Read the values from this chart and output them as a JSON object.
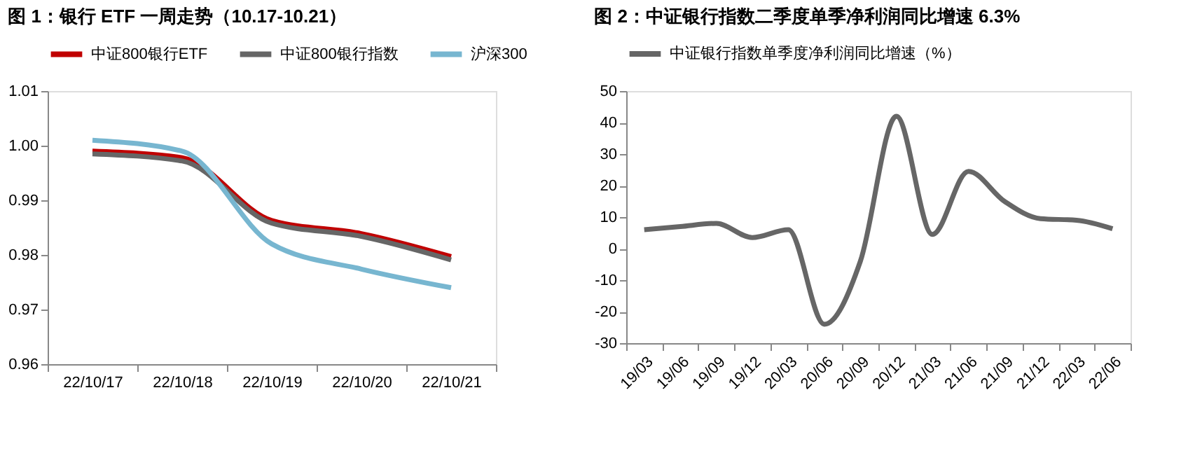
{
  "chart_data": [
    {
      "type": "line",
      "title": "图 1：银行 ETF 一周走势（10.17-10.21）",
      "categories": [
        "22/10/17",
        "22/10/18",
        "22/10/19",
        "22/10/20",
        "22/10/21"
      ],
      "series": [
        {
          "name": "中证800银行ETF",
          "color": "#c00000",
          "values": [
            0.999,
            0.9978,
            0.9863,
            0.9839,
            0.9797
          ]
        },
        {
          "name": "中证800银行指数",
          "color": "#666666",
          "values": [
            0.9985,
            0.9972,
            0.9858,
            0.9834,
            0.9791
          ]
        },
        {
          "name": "沪深300",
          "color": "#77b6d0",
          "values": [
            1.001,
            0.999,
            0.982,
            0.9774,
            0.974
          ]
        }
      ],
      "ylim": [
        0.96,
        1.01
      ],
      "yticks": [
        {
          "value": 0.96,
          "label": "0.96"
        },
        {
          "value": 0.97,
          "label": "0.97"
        },
        {
          "value": 0.98,
          "label": "0.98"
        },
        {
          "value": 0.99,
          "label": "0.99"
        },
        {
          "value": 1.0,
          "label": "1.00"
        },
        {
          "value": 1.01,
          "label": "1.01"
        }
      ],
      "grid": false,
      "legend": "top",
      "marker": "none",
      "line_style": "solid"
    },
    {
      "type": "line",
      "title": "图 2：中证银行指数二季度单季净利润同比增速 6.3%",
      "categories": [
        "19/03",
        "19/06",
        "19/09",
        "19/12",
        "20/03",
        "20/06",
        "20/09",
        "20/12",
        "21/03",
        "21/06",
        "21/09",
        "21/12",
        "22/03",
        "22/06"
      ],
      "series": [
        {
          "name": "中证银行指数单季度净利润同比增速（%）",
          "color": "#666666",
          "values": [
            6,
            7,
            8,
            3.5,
            6,
            -24,
            -4,
            42,
            4.5,
            24.5,
            15,
            9.5,
            9,
            6.3
          ]
        }
      ],
      "ylim": [
        -30,
        50
      ],
      "yticks": [
        -30,
        -20,
        -10,
        0,
        10,
        20,
        30,
        40,
        50
      ],
      "grid": false,
      "legend": "top",
      "marker": "none",
      "line_style": "solid"
    }
  ]
}
